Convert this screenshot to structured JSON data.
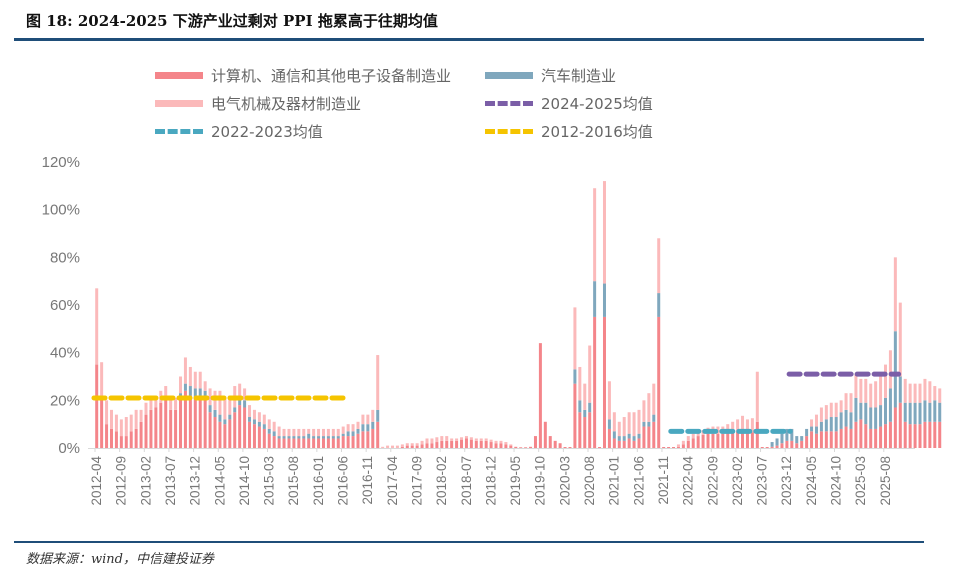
{
  "title": "图 18: 2024-2025 下游产业过剩对 PPI 拖累高于往期均值",
  "source": "数据来源：wind，中信建投证券",
  "colors": {
    "computer": "#f4858a",
    "auto": "#7fa7bd",
    "electrical": "#fbb9ba",
    "avg_2024_2025": "#7b5ea7",
    "avg_2022_2023": "#4aa8c0",
    "avg_2012_2016": "#f5c400",
    "rule": "#1f4e79"
  },
  "legend": [
    {
      "label": "计算机、通信和其他电子设备制造业",
      "kind": "bar",
      "color": "#f4858a"
    },
    {
      "label": "汽车制造业",
      "kind": "bar",
      "color": "#7fa7bd"
    },
    {
      "label": "电气机械及器材制造业",
      "kind": "bar",
      "color": "#fbb9ba"
    },
    {
      "label": "2024-2025均值",
      "kind": "dash",
      "color": "#7b5ea7"
    },
    {
      "label": "2022-2023均值",
      "kind": "dash",
      "color": "#4aa8c0"
    },
    {
      "label": "2012-2016均值",
      "kind": "dash",
      "color": "#f5c400"
    }
  ],
  "chart_data": {
    "type": "bar",
    "stacked": true,
    "title": "2024-2025 下游产业过剩对 PPI 拖累高于往期均值",
    "xlabel": "",
    "ylabel": "",
    "ylim": [
      0,
      1.2
    ],
    "yticks": [
      "0%",
      "20%",
      "40%",
      "60%",
      "80%",
      "100%",
      "120%"
    ],
    "x_tick_labels": [
      "2012-04",
      "2012-09",
      "2013-02",
      "2013-07",
      "2013-12",
      "2014-05",
      "2014-10",
      "2015-03",
      "2015-08",
      "2016-01",
      "2016-06",
      "2016-11",
      "2017-04",
      "2017-09",
      "2018-02",
      "2018-07",
      "2018-12",
      "2019-05",
      "2019-10",
      "2020-03",
      "2020-08",
      "2021-01",
      "2021-06",
      "2021-11",
      "2022-04",
      "2022-09",
      "2023-02",
      "2023-07",
      "2023-12",
      "2024-05",
      "2024-10",
      "2025-03",
      "2025-08"
    ],
    "x_start": "2012-04",
    "frequency": "monthly",
    "series": [
      {
        "name": "计算机、通信和其他电子设备制造业",
        "values": [
          0.35,
          0.2,
          0.1,
          0.08,
          0.07,
          0.05,
          0.05,
          0.07,
          0.08,
          0.11,
          0.14,
          0.16,
          0.17,
          0.19,
          0.2,
          0.16,
          0.16,
          0.22,
          0.24,
          0.22,
          0.21,
          0.22,
          0.2,
          0.15,
          0.13,
          0.11,
          0.1,
          0.12,
          0.15,
          0.18,
          0.17,
          0.11,
          0.1,
          0.09,
          0.08,
          0.06,
          0.05,
          0.04,
          0.04,
          0.04,
          0.04,
          0.04,
          0.04,
          0.04,
          0.04,
          0.04,
          0.04,
          0.04,
          0.04,
          0.04,
          0.05,
          0.05,
          0.05,
          0.06,
          0.07,
          0.07,
          0.08,
          0.11,
          0.0,
          0.0,
          0.0,
          0.0,
          0.005,
          0.01,
          0.01,
          0.01,
          0.015,
          0.02,
          0.02,
          0.025,
          0.03,
          0.03,
          0.03,
          0.03,
          0.035,
          0.04,
          0.035,
          0.03,
          0.03,
          0.03,
          0.025,
          0.02,
          0.02,
          0.015,
          0.01,
          0.005,
          0.003,
          0.003,
          0.005,
          0.05,
          0.44,
          0.11,
          0.05,
          0.03,
          0.02,
          0.0,
          0.0,
          0.27,
          0.15,
          0.13,
          0.15,
          0.55,
          0.0,
          0.55,
          0.08,
          0.04,
          0.03,
          0.03,
          0.04,
          0.03,
          0.04,
          0.09,
          0.09,
          0.11,
          0.55,
          0.0,
          0.0,
          0.0,
          0.005,
          0.015,
          0.03,
          0.04,
          0.05,
          0.055,
          0.06,
          0.06,
          0.06,
          0.06,
          0.065,
          0.07,
          0.07,
          0.075,
          0.07,
          0.065,
          0.11,
          0.0,
          0.0,
          0.005,
          0.01,
          0.02,
          0.03,
          0.03,
          0.02,
          0.03,
          0.05,
          0.07,
          0.06,
          0.07,
          0.07,
          0.07,
          0.07,
          0.08,
          0.09,
          0.08,
          0.11,
          0.12,
          0.1,
          0.08,
          0.08,
          0.09,
          0.1,
          0.11,
          0.17,
          0.19,
          0.11,
          0.1,
          0.1,
          0.1,
          0.11,
          0.11,
          0.11,
          0.11
        ]
      },
      {
        "name": "汽车制造业",
        "values": [
          0.0,
          0.0,
          0.0,
          0.0,
          0.0,
          0.0,
          0.0,
          0.0,
          0.0,
          0.0,
          0.0,
          0.0,
          0.0,
          0.0,
          0.0,
          0.0,
          0.0,
          0.01,
          0.03,
          0.04,
          0.04,
          0.03,
          0.04,
          0.03,
          0.03,
          0.03,
          0.02,
          0.02,
          0.02,
          0.03,
          0.03,
          0.02,
          0.02,
          0.02,
          0.02,
          0.02,
          0.02,
          0.01,
          0.01,
          0.01,
          0.01,
          0.01,
          0.01,
          0.02,
          0.01,
          0.01,
          0.01,
          0.01,
          0.01,
          0.01,
          0.01,
          0.02,
          0.02,
          0.02,
          0.03,
          0.03,
          0.03,
          0.05,
          0.0,
          0.0,
          0.0,
          0.0,
          0.0,
          0.0,
          0.0,
          0.0,
          0.0,
          0.0,
          0.0,
          0.0,
          0.0,
          0.0,
          0.0,
          0.0,
          0.0,
          0.0,
          0.0,
          0.0,
          0.0,
          0.0,
          0.0,
          0.0,
          0.0,
          0.0,
          0.0,
          0.0,
          0.0,
          0.0,
          0.0,
          0.0,
          0.0,
          0.0,
          0.0,
          0.0,
          0.0,
          0.0,
          0.0,
          0.06,
          0.05,
          0.03,
          0.04,
          0.15,
          0.0,
          0.14,
          0.04,
          0.03,
          0.02,
          0.02,
          0.02,
          0.02,
          0.02,
          0.02,
          0.02,
          0.03,
          0.1,
          0.0,
          0.0,
          0.0,
          0.0,
          0.0,
          0.0,
          0.0,
          0.0,
          0.0,
          0.0,
          0.0,
          0.0,
          0.0,
          0.0,
          0.0,
          0.0,
          0.0,
          0.0,
          0.0,
          0.0,
          0.0,
          0.0,
          0.02,
          0.03,
          0.04,
          0.05,
          0.05,
          0.03,
          0.02,
          0.03,
          0.02,
          0.03,
          0.04,
          0.05,
          0.06,
          0.06,
          0.07,
          0.07,
          0.07,
          0.1,
          0.07,
          0.09,
          0.09,
          0.09,
          0.09,
          0.11,
          0.14,
          0.32,
          0.11,
          0.08,
          0.09,
          0.09,
          0.09,
          0.09,
          0.08,
          0.09,
          0.08
        ]
      },
      {
        "name": "电气机械及器材制造业",
        "values": [
          0.32,
          0.16,
          0.1,
          0.08,
          0.07,
          0.07,
          0.08,
          0.07,
          0.08,
          0.05,
          0.05,
          0.04,
          0.04,
          0.05,
          0.06,
          0.06,
          0.05,
          0.07,
          0.11,
          0.08,
          0.07,
          0.07,
          0.04,
          0.07,
          0.08,
          0.1,
          0.09,
          0.08,
          0.09,
          0.06,
          0.05,
          0.05,
          0.04,
          0.04,
          0.04,
          0.04,
          0.04,
          0.04,
          0.03,
          0.03,
          0.03,
          0.03,
          0.03,
          0.02,
          0.03,
          0.03,
          0.03,
          0.03,
          0.03,
          0.03,
          0.03,
          0.03,
          0.03,
          0.03,
          0.04,
          0.04,
          0.05,
          0.23,
          0.005,
          0.01,
          0.01,
          0.01,
          0.01,
          0.01,
          0.01,
          0.01,
          0.015,
          0.02,
          0.02,
          0.02,
          0.02,
          0.02,
          0.01,
          0.01,
          0.01,
          0.01,
          0.01,
          0.01,
          0.01,
          0.01,
          0.01,
          0.01,
          0.01,
          0.01,
          0.005,
          0.0,
          0.0,
          0.0,
          0.0,
          0.0,
          0.0,
          0.0,
          0.0,
          0.0,
          0.0,
          0.0,
          0.0,
          0.26,
          0.14,
          0.11,
          0.24,
          0.39,
          0.0,
          0.43,
          0.16,
          0.08,
          0.06,
          0.08,
          0.09,
          0.1,
          0.1,
          0.09,
          0.12,
          0.13,
          0.23,
          0.0,
          0.0,
          0.0,
          0.01,
          0.015,
          0.02,
          0.02,
          0.02,
          0.02,
          0.025,
          0.03,
          0.03,
          0.03,
          0.035,
          0.04,
          0.05,
          0.06,
          0.05,
          0.06,
          0.21,
          0.0,
          0.0,
          0.0,
          0.0,
          0.0,
          0.0,
          0.0,
          0.0,
          0.0,
          0.0,
          0.03,
          0.05,
          0.06,
          0.06,
          0.06,
          0.06,
          0.05,
          0.07,
          0.08,
          0.1,
          0.1,
          0.1,
          0.1,
          0.11,
          0.13,
          0.14,
          0.16,
          0.31,
          0.31,
          0.1,
          0.08,
          0.08,
          0.08,
          0.09,
          0.09,
          0.06,
          0.06,
          0.05
        ]
      },
      {
        "name": "2012-2016均值",
        "kind": "hline",
        "value": 0.21,
        "from": "2012-04",
        "to": "2016-06"
      },
      {
        "name": "2022-2023均值",
        "kind": "hline",
        "value": 0.07,
        "from": "2022-01",
        "to": "2023-12"
      },
      {
        "name": "2024-2025均值",
        "kind": "hline",
        "value": 0.31,
        "from": "2024-01",
        "to": "2025-10"
      }
    ],
    "legend_position": "top",
    "grid": false
  }
}
